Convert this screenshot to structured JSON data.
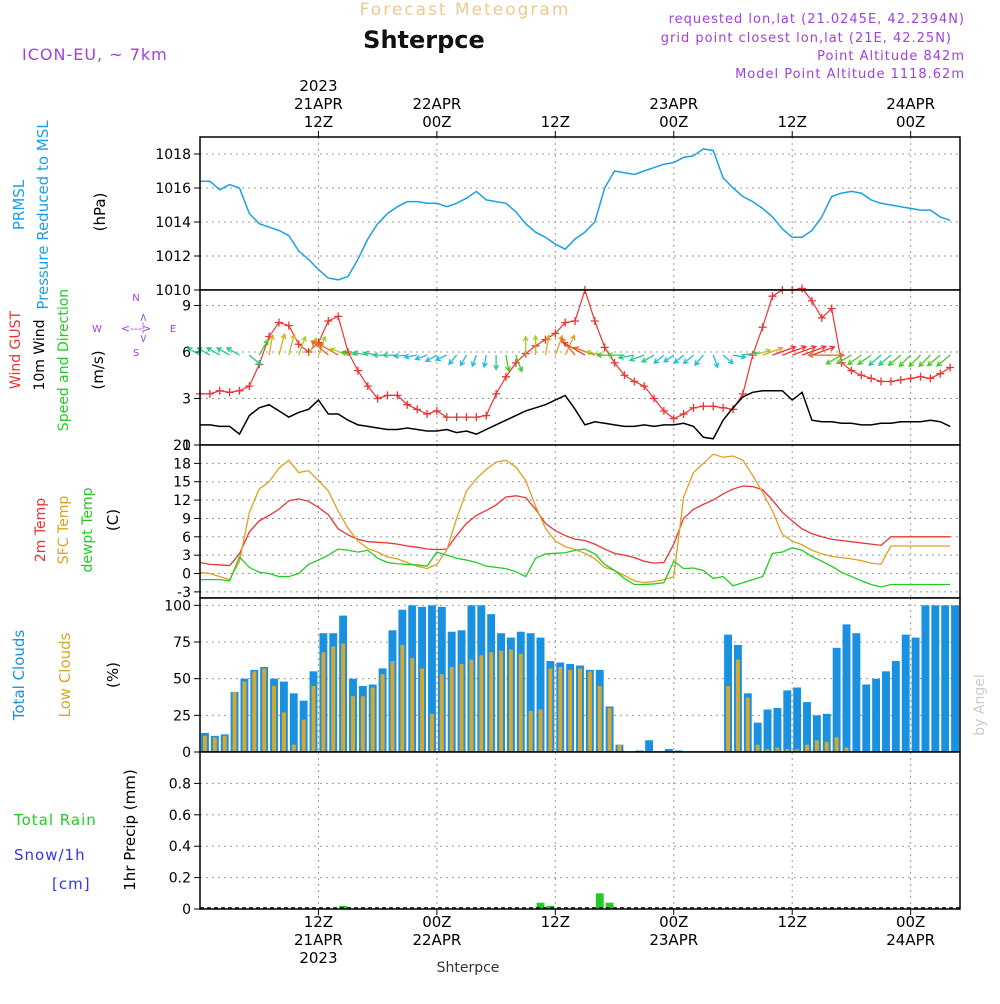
{
  "header": {
    "subtitle": "Forecast Meteogram",
    "title": "Shterpce",
    "model": "ICON-EU, ~ 7km",
    "info": [
      "requested lon,lat (21.0245E, 42.2394N)",
      "grid point closest lon,lat (21E, 42.25N)",
      "Point Altitude 842m",
      "Model Point Altitude 1118.62m"
    ],
    "footer_station": "Shterpce",
    "watermark": "by Angel"
  },
  "time_axis": {
    "top": [
      {
        "lines": [
          "2023",
          "21APR",
          "12Z"
        ],
        "t": 12
      },
      {
        "lines": [
          "22APR",
          "00Z"
        ],
        "t": 24
      },
      {
        "lines": [
          "12Z"
        ],
        "t": 36
      },
      {
        "lines": [
          "23APR",
          "00Z"
        ],
        "t": 48
      },
      {
        "lines": [
          "12Z"
        ],
        "t": 60
      },
      {
        "lines": [
          "24APR",
          "00Z"
        ],
        "t": 72
      }
    ],
    "bottom": [
      {
        "lines": [
          "12Z",
          "21APR",
          "2023"
        ],
        "t": 12
      },
      {
        "lines": [
          "00Z",
          "22APR"
        ],
        "t": 24
      },
      {
        "lines": [
          "12Z"
        ],
        "t": 36
      },
      {
        "lines": [
          "00Z",
          "23APR"
        ],
        "t": 48
      },
      {
        "lines": [
          "12Z"
        ],
        "t": 60
      },
      {
        "lines": [
          "00Z",
          "24APR"
        ],
        "t": 72
      }
    ]
  },
  "colors": {
    "pressure": "#1aa0e8",
    "gust": "#ee3333",
    "wind": "#000000",
    "t2m": "#ee3333",
    "sfc": "#e0a020",
    "dewpt": "#22cc22",
    "total_clouds": "#1a90e0",
    "low_clouds": "#d4a830",
    "rain": "#22cc22",
    "snow": "#3333ee",
    "info": "#a040e0",
    "subtitle": "#f0c890"
  },
  "chart_data": [
    {
      "name": "pressure",
      "type": "line",
      "ylabel_lines": [
        "PRMSL",
        "Pressure Reduced to MSL"
      ],
      "unit": "(hPa)",
      "ylim": [
        1010,
        1019
      ],
      "yticks": [
        1010,
        1012,
        1014,
        1016,
        1018
      ],
      "x": [
        0,
        1,
        2,
        3,
        4,
        5,
        6,
        7,
        8,
        9,
        10,
        11,
        12,
        13,
        14,
        15,
        16,
        17,
        18,
        19,
        20,
        21,
        22,
        23,
        24,
        25,
        26,
        27,
        28,
        29,
        30,
        31,
        32,
        33,
        34,
        35,
        36,
        37,
        38,
        39,
        40,
        41,
        42,
        43,
        44,
        45,
        46,
        47,
        48,
        49,
        50,
        51,
        52,
        53,
        54,
        55,
        56,
        57,
        58,
        59,
        60,
        61,
        62,
        63,
        64,
        65,
        66,
        67,
        68,
        69,
        70,
        71,
        72,
        73,
        74,
        75,
        76
      ],
      "values": [
        1016.4,
        1016.4,
        1015.9,
        1016.2,
        1016.0,
        1014.5,
        1013.9,
        1013.7,
        1013.5,
        1013.2,
        1012.3,
        1011.8,
        1011.2,
        1010.7,
        1010.6,
        1010.8,
        1011.8,
        1013.0,
        1013.9,
        1014.5,
        1014.9,
        1015.2,
        1015.2,
        1015.1,
        1015.1,
        1014.9,
        1015.1,
        1015.4,
        1015.8,
        1015.3,
        1015.2,
        1015.1,
        1014.6,
        1013.9,
        1013.4,
        1013.1,
        1012.7,
        1012.4,
        1013.0,
        1013.4,
        1014.0,
        1016.0,
        1017.0,
        1016.9,
        1016.8,
        1017.0,
        1017.2,
        1017.4,
        1017.5,
        1017.8,
        1017.9,
        1018.3,
        1018.2,
        1016.6,
        1016.0,
        1015.5,
        1015.2,
        1014.8,
        1014.3,
        1013.6,
        1013.1,
        1013.1,
        1013.5,
        1014.3,
        1015.5,
        1015.7,
        1015.8,
        1015.7,
        1015.3,
        1015.1,
        1015.0,
        1014.9,
        1014.8,
        1014.7,
        1014.7,
        1014.3,
        1014.1
      ]
    },
    {
      "name": "wind",
      "type": "line",
      "ylabel_lines": [
        "Wind GUST",
        "10m Wind",
        "Speed and Direction"
      ],
      "unit": "(m/s)",
      "compass": {
        "n": "N",
        "s": "S",
        "w": "W",
        "e": "E",
        "arrows": "<--->"
      },
      "ylim": [
        0,
        10
      ],
      "yticks": [
        0,
        3,
        6,
        9
      ],
      "x": [
        0,
        1,
        2,
        3,
        4,
        5,
        6,
        7,
        8,
        9,
        10,
        11,
        12,
        13,
        14,
        15,
        16,
        17,
        18,
        19,
        20,
        21,
        22,
        23,
        24,
        25,
        26,
        27,
        28,
        29,
        30,
        31,
        32,
        33,
        34,
        35,
        36,
        37,
        38,
        39,
        40,
        41,
        42,
        43,
        44,
        45,
        46,
        47,
        48,
        49,
        50,
        51,
        52,
        53,
        54,
        55,
        56,
        57,
        58,
        59,
        60,
        61,
        62,
        63,
        64,
        65,
        66,
        67,
        68,
        69,
        70,
        71,
        72,
        73,
        74,
        75,
        76
      ],
      "series": [
        {
          "name": "gust",
          "values": [
            3.3,
            3.3,
            3.5,
            3.4,
            3.5,
            3.8,
            5.2,
            7.0,
            7.9,
            7.7,
            6.5,
            6.0,
            6.6,
            8.0,
            8.3,
            6.0,
            4.8,
            3.8,
            3.0,
            3.2,
            3.2,
            2.6,
            2.3,
            2.0,
            2.2,
            1.8,
            1.8,
            1.8,
            1.8,
            1.9,
            3.3,
            4.4,
            5.3,
            5.9,
            6.4,
            6.8,
            7.2,
            7.9,
            8.0,
            10.0,
            8.0,
            6.3,
            5.3,
            4.5,
            4.1,
            3.8,
            3.0,
            2.2,
            1.7,
            2.0,
            2.4,
            2.5,
            2.5,
            2.4,
            2.3,
            3.3,
            5.8,
            7.6,
            9.6,
            10.0,
            10.0,
            10.1,
            9.3,
            8.2,
            8.8,
            5.3,
            4.8,
            4.5,
            4.3,
            4.1,
            4.1,
            4.2,
            4.3,
            4.4,
            4.3,
            4.6,
            5.0
          ]
        },
        {
          "name": "wind10m",
          "values": [
            1.3,
            1.3,
            1.2,
            1.2,
            0.7,
            1.9,
            2.4,
            2.6,
            2.2,
            1.8,
            2.1,
            2.3,
            2.9,
            2.0,
            2.0,
            1.6,
            1.3,
            1.2,
            1.1,
            1.0,
            1.0,
            1.1,
            1.0,
            0.9,
            0.9,
            1.0,
            0.8,
            0.9,
            0.7,
            1.0,
            1.3,
            1.6,
            1.9,
            2.2,
            2.4,
            2.6,
            2.9,
            3.2,
            2.3,
            1.3,
            1.5,
            1.4,
            1.3,
            1.2,
            1.2,
            1.3,
            1.2,
            1.3,
            1.3,
            1.4,
            1.2,
            0.5,
            0.4,
            1.6,
            2.4,
            3.1,
            3.4,
            3.5,
            3.5,
            3.5,
            2.9,
            3.4,
            1.6,
            1.5,
            1.5,
            1.4,
            1.4,
            1.3,
            1.3,
            1.4,
            1.4,
            1.5,
            1.5,
            1.5,
            1.6,
            1.5,
            1.2
          ]
        }
      ],
      "direction_deg": [
        300,
        300,
        300,
        300,
        300,
        130,
        30,
        10,
        15,
        15,
        20,
        25,
        20,
        310,
        300,
        290,
        280,
        280,
        280,
        270,
        270,
        265,
        260,
        250,
        240,
        245,
        220,
        210,
        200,
        190,
        180,
        170,
        160,
        0,
        0,
        10,
        20,
        25,
        320,
        300,
        290,
        280,
        270,
        270,
        260,
        250,
        240,
        230,
        235,
        230,
        230,
        220,
        160,
        130,
        100,
        80,
        75,
        70,
        70,
        70,
        70,
        70,
        70,
        90,
        270,
        240,
        240,
        235,
        235,
        230,
        230,
        230,
        225,
        225,
        225,
        230,
        230
      ]
    },
    {
      "name": "temperature",
      "type": "line",
      "ylabel_lines": [
        "2m Temp",
        "SFC Temp",
        "dewpt Temp"
      ],
      "unit": "(C)",
      "ylim": [
        -4,
        21
      ],
      "yticks": [
        -3,
        0,
        3,
        6,
        9,
        12,
        15,
        18,
        21
      ],
      "x": [
        0,
        1,
        2,
        3,
        4,
        5,
        6,
        7,
        8,
        9,
        10,
        11,
        12,
        13,
        14,
        15,
        16,
        17,
        18,
        19,
        20,
        21,
        22,
        23,
        24,
        25,
        26,
        27,
        28,
        29,
        30,
        31,
        32,
        33,
        34,
        35,
        36,
        37,
        38,
        39,
        40,
        41,
        42,
        43,
        44,
        45,
        46,
        47,
        48,
        49,
        50,
        51,
        52,
        53,
        54,
        55,
        56,
        57,
        58,
        59,
        60,
        61,
        62,
        63,
        64,
        65,
        66,
        67,
        68,
        69,
        70,
        71,
        72,
        73,
        74,
        75,
        76
      ],
      "series": [
        {
          "name": "t2m",
          "values": [
            1.8,
            1.5,
            1.4,
            1.3,
            3.2,
            6.8,
            8.6,
            9.5,
            10.5,
            11.9,
            12.2,
            11.8,
            10.8,
            9.6,
            7.3,
            6.3,
            5.6,
            5.2,
            5.1,
            5.0,
            4.8,
            4.5,
            4.3,
            4.0,
            3.9,
            4.0,
            6.2,
            8.2,
            9.5,
            10.3,
            11.2,
            12.5,
            12.7,
            12.4,
            10.5,
            8.2,
            7.0,
            6.2,
            5.6,
            5.4,
            4.8,
            4.0,
            3.3,
            3.0,
            2.6,
            2.0,
            1.7,
            1.8,
            4.8,
            9.0,
            10.5,
            11.3,
            12.0,
            13.0,
            13.8,
            14.3,
            14.2,
            13.7,
            12.0,
            10.0,
            8.6,
            7.3,
            6.5,
            6.0,
            5.6,
            5.4,
            5.2,
            5.0,
            4.8,
            4.6,
            6.0,
            6.0,
            6.0,
            6.0,
            6.0,
            6.0,
            6.0
          ]
        },
        {
          "name": "sfc",
          "values": [
            0.2,
            0.0,
            -0.5,
            -1.0,
            2.0,
            10.0,
            13.8,
            15.0,
            17.2,
            18.5,
            16.5,
            16.8,
            15.2,
            13.5,
            10.2,
            7.4,
            5.3,
            4.1,
            3.5,
            2.7,
            2.4,
            1.8,
            1.2,
            0.8,
            1.5,
            3.8,
            9.0,
            13.5,
            15.5,
            17.0,
            18.2,
            18.5,
            17.4,
            15.2,
            11.0,
            7.4,
            5.3,
            4.4,
            3.9,
            3.3,
            2.4,
            1.0,
            0.5,
            -0.3,
            -1.2,
            -1.5,
            -1.3,
            -1.0,
            -0.5,
            12.5,
            16.5,
            18.0,
            19.5,
            19.0,
            19.2,
            18.5,
            16.0,
            13.3,
            10.2,
            6.4,
            5.3,
            4.7,
            3.8,
            3.2,
            2.8,
            2.6,
            2.4,
            2.1,
            1.7,
            1.5,
            4.5,
            4.5,
            4.5,
            4.5,
            4.5,
            4.5,
            4.5
          ]
        },
        {
          "name": "dewpt",
          "values": [
            -1.0,
            -1.0,
            -1.0,
            -1.2,
            2.7,
            1.0,
            0.2,
            0.0,
            -0.5,
            -0.5,
            0.0,
            1.5,
            2.2,
            3.0,
            4.0,
            3.8,
            3.5,
            3.8,
            2.5,
            1.8,
            1.6,
            1.5,
            1.4,
            1.2,
            3.5,
            3.0,
            2.5,
            2.2,
            1.8,
            1.2,
            1.0,
            0.8,
            0.3,
            -0.5,
            2.5,
            3.2,
            3.3,
            3.4,
            3.8,
            4.0,
            3.2,
            1.5,
            0.5,
            -0.8,
            -1.8,
            -1.8,
            -1.7,
            -1.5,
            2.0,
            0.8,
            0.9,
            0.5,
            -0.8,
            -0.5,
            -2.0,
            -1.5,
            -1.0,
            -0.5,
            3.3,
            3.5,
            4.2,
            3.8,
            2.8,
            2.0,
            1.2,
            0.2,
            -0.5,
            -1.2,
            -1.8,
            -2.2,
            -1.8,
            -1.8,
            -1.8,
            -1.8,
            -1.8,
            -1.8,
            -1.8
          ]
        }
      ]
    },
    {
      "name": "clouds",
      "type": "bar",
      "ylabel_lines": [
        "Total Clouds",
        "Low Clouds"
      ],
      "unit": "(%)",
      "ylim": [
        0,
        105
      ],
      "yticks": [
        0,
        25,
        50,
        75,
        100
      ],
      "x": [
        0,
        1,
        2,
        3,
        4,
        5,
        6,
        7,
        8,
        9,
        10,
        11,
        12,
        13,
        14,
        15,
        16,
        17,
        18,
        19,
        20,
        21,
        22,
        23,
        24,
        25,
        26,
        27,
        28,
        29,
        30,
        31,
        32,
        33,
        34,
        35,
        36,
        37,
        38,
        39,
        40,
        41,
        42,
        43,
        44,
        45,
        46,
        47,
        48,
        49,
        50,
        51,
        52,
        53,
        54,
        55,
        56,
        57,
        58,
        59,
        60,
        61,
        62,
        63,
        64,
        65,
        66,
        67,
        68,
        69,
        70,
        71,
        72,
        73,
        74,
        75,
        76
      ],
      "series": [
        {
          "name": "total",
          "values": [
            13,
            11,
            12,
            41,
            50,
            56,
            58,
            50,
            48,
            40,
            35,
            55,
            81,
            81,
            93,
            50,
            45,
            46,
            57,
            83,
            97,
            100,
            99,
            100,
            99,
            82,
            83,
            100,
            100,
            94,
            81,
            78,
            82,
            81,
            78,
            62,
            61,
            60,
            59,
            56,
            56,
            31,
            5,
            0,
            1,
            8,
            0,
            2,
            1,
            0,
            0,
            0,
            0,
            80,
            73,
            40,
            20,
            29,
            30,
            42,
            44,
            34,
            25,
            26,
            71,
            87,
            81,
            46,
            50,
            55,
            62,
            80,
            78,
            100,
            100,
            100,
            100
          ]
        },
        {
          "name": "low",
          "values": [
            11,
            10,
            11,
            41,
            48,
            55,
            57,
            45,
            27,
            5,
            22,
            45,
            68,
            72,
            74,
            38,
            38,
            44,
            53,
            62,
            73,
            64,
            57,
            26,
            53,
            58,
            60,
            63,
            66,
            68,
            69,
            70,
            67,
            28,
            29,
            57,
            58,
            56,
            57,
            55,
            45,
            30,
            5,
            0,
            0,
            0,
            0,
            0,
            0,
            0,
            0,
            0,
            0,
            45,
            63,
            37,
            5,
            2,
            3,
            2,
            2,
            5,
            8,
            7,
            10,
            3,
            0,
            0,
            0,
            0,
            0,
            0,
            0,
            0,
            0,
            0,
            0
          ]
        }
      ]
    },
    {
      "name": "precip",
      "type": "bar",
      "ylabel_lines": [
        "Total Rain",
        "Snow/1h",
        "[cm]"
      ],
      "unit": "1hr Precip (mm)",
      "ylim": [
        0,
        1.0
      ],
      "yticks": [
        0,
        0.2,
        0.4,
        0.6,
        0.8
      ],
      "series": [
        {
          "name": "rain",
          "points": [
            {
              "t": 14,
              "v": 0.02
            },
            {
              "t": 20,
              "v": 0.005
            },
            {
              "t": 34,
              "v": 0.04
            },
            {
              "t": 35,
              "v": 0.02
            },
            {
              "t": 40,
              "v": 0.1
            },
            {
              "t": 41,
              "v": 0.04
            }
          ]
        },
        {
          "name": "snow",
          "points": []
        }
      ]
    }
  ]
}
